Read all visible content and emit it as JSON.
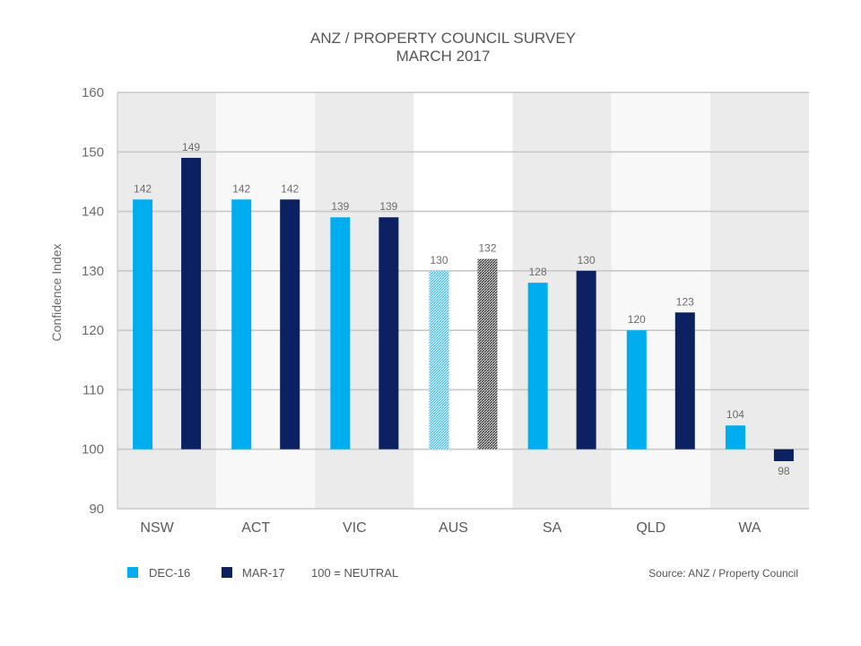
{
  "chart_data": {
    "type": "bar",
    "title": "ANZ / PROPERTY COUNCIL SURVEY",
    "subtitle": "MARCH 2017",
    "ylabel": "Confidence Index",
    "xlabel": "",
    "ylim": [
      90,
      160
    ],
    "yticks": [
      90,
      100,
      110,
      120,
      130,
      140,
      150,
      160
    ],
    "baseline": 100,
    "grid": true,
    "categories": [
      "NSW",
      "ACT",
      "VIC",
      "AUS",
      "SA",
      "QLD",
      "WA"
    ],
    "series": [
      {
        "name": "DEC-16",
        "values": [
          142,
          142,
          139,
          130,
          128,
          120,
          104
        ]
      },
      {
        "name": "MAR-17",
        "values": [
          149,
          142,
          139,
          132,
          130,
          123,
          98
        ]
      }
    ],
    "highlight_category": "AUS",
    "legend": {
      "position": "bottom-left",
      "note": "100 = NEUTRAL"
    },
    "source": "Source: ANZ / Property Council"
  },
  "colors": {
    "dec16": "#00aeef",
    "mar17": "#0b2161",
    "aus_dec16_hatch": "#6fcbe6",
    "aus_mar17_hatch": "#555555",
    "band_dark": "#ebebeb",
    "band_light": "#f8f8f8",
    "band_aus": "#ffffff",
    "grid": "#c8c8c8"
  }
}
